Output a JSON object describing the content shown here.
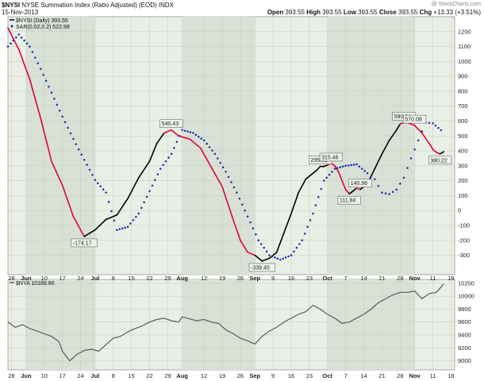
{
  "header": {
    "symbol": "$NYSI",
    "name": "NYSE Summation Index (Ratio Adjusted) (EOD)",
    "exchange": "INDX",
    "date": "15-Nov-2013",
    "open_label": "Open",
    "open": "393.55",
    "high_label": "High",
    "high": "393.55",
    "low_label": "Low",
    "low": "393.55",
    "close_label": "Close",
    "close": "393.55",
    "chg_label": "Chg",
    "chg": "+13.33 (+3.51%)",
    "watermark": "@ StockCharts.com"
  },
  "colors": {
    "panel_bg": "#e9efe6",
    "shade": "#d9e1d6",
    "grid": "#c4cec0",
    "nysi_line": "#000000",
    "nysi_down": "#e0003c",
    "sar": "#1a2aa8",
    "nya_line": "#5a5a5a"
  },
  "chart_data": [
    {
      "type": "line",
      "panel": "top",
      "legend": [
        {
          "label": "$NYSI (Daily) 393.55",
          "color": "#000000",
          "marker": "line"
        },
        {
          "label": "SAR(0.02,0.2) 522.98",
          "color": "#1a2aa8",
          "marker": "dot"
        }
      ],
      "ylim": [
        -430,
        1300
      ],
      "yticks": [
        -300,
        -200,
        -100,
        0,
        100,
        200,
        300,
        400,
        500,
        600,
        700,
        800,
        900,
        1000,
        1100,
        1200
      ],
      "xlim": [
        0,
        123
      ],
      "xticks": [
        {
          "x": 1,
          "label": "28"
        },
        {
          "x": 5,
          "label": "Jun"
        },
        {
          "x": 10,
          "label": "10"
        },
        {
          "x": 15,
          "label": "17"
        },
        {
          "x": 20,
          "label": "24"
        },
        {
          "x": 24,
          "label": "Jul"
        },
        {
          "x": 29,
          "label": "8"
        },
        {
          "x": 34,
          "label": "15"
        },
        {
          "x": 39,
          "label": "22"
        },
        {
          "x": 44,
          "label": "29"
        },
        {
          "x": 48,
          "label": "Aug"
        },
        {
          "x": 54,
          "label": "12"
        },
        {
          "x": 59,
          "label": "19"
        },
        {
          "x": 64,
          "label": "26"
        },
        {
          "x": 68,
          "label": "Sep"
        },
        {
          "x": 73,
          "label": "9"
        },
        {
          "x": 78,
          "label": "16"
        },
        {
          "x": 83,
          "label": "23"
        },
        {
          "x": 88,
          "label": "Oct"
        },
        {
          "x": 93,
          "label": "7"
        },
        {
          "x": 98,
          "label": "14"
        },
        {
          "x": 103,
          "label": "21"
        },
        {
          "x": 108,
          "label": "28"
        },
        {
          "x": 112,
          "label": "Nov"
        },
        {
          "x": 117,
          "label": "11"
        },
        {
          "x": 122,
          "label": "18"
        }
      ],
      "shaded_months": [
        [
          5,
          24
        ],
        [
          48,
          68
        ],
        [
          88,
          112
        ]
      ],
      "series": [
        {
          "name": "$NYSI (Daily)",
          "x": [
            0,
            3,
            6,
            9,
            12,
            15,
            18,
            21,
            24,
            27,
            30,
            33,
            36,
            39,
            41,
            43,
            45,
            47,
            50,
            53,
            56,
            59,
            62,
            64,
            66,
            68,
            70,
            72,
            74,
            76,
            78,
            80,
            82,
            84,
            85,
            86,
            87,
            88,
            89,
            90,
            91,
            92,
            93,
            94,
            95,
            96,
            97,
            99,
            101,
            103,
            105,
            107,
            108,
            109,
            110,
            111,
            112,
            114,
            116,
            117,
            118,
            119,
            120
          ],
          "values": [
            1225,
            1080,
            880,
            620,
            330,
            170,
            -40,
            -174,
            -130,
            -60,
            -30,
            80,
            220,
            330,
            450,
            520,
            540,
            500,
            480,
            420,
            290,
            160,
            -60,
            -200,
            -280,
            -300,
            -339,
            -320,
            -280,
            -150,
            -20,
            120,
            210,
            250,
            270,
            296,
            295,
            305,
            315,
            300,
            260,
            200,
            140,
            112,
            130,
            150,
            141,
            180,
            280,
            380,
            470,
            540,
            580,
            590,
            588,
            580,
            570,
            520,
            450,
            410,
            390,
            380,
            394
          ],
          "down_segments": [
            [
              0,
              21
            ],
            [
              43,
              68
            ],
            [
              88,
              94
            ],
            [
              96,
              97
            ],
            [
              108,
              119
            ]
          ]
        },
        {
          "name": "SAR(0.02,0.2)",
          "x": [
            0,
            3,
            6,
            9,
            12,
            15,
            18,
            21,
            24,
            27,
            30,
            33,
            36,
            39,
            42,
            45,
            48,
            51,
            54,
            57,
            60,
            63,
            66,
            69,
            72,
            75,
            78,
            81,
            84,
            87,
            90,
            93,
            96,
            99,
            101,
            103,
            105,
            107,
            109,
            111,
            113,
            115,
            117,
            120
          ],
          "values": [
            1100,
            1180,
            1100,
            950,
            790,
            630,
            480,
            340,
            205,
            120,
            -130,
            -110,
            -20,
            130,
            280,
            380,
            540,
            520,
            470,
            380,
            260,
            120,
            -40,
            -200,
            -300,
            -330,
            -300,
            -200,
            -20,
            200,
            280,
            300,
            310,
            250,
            210,
            120,
            110,
            140,
            220,
            350,
            470,
            590,
            585,
            523
          ]
        }
      ],
      "annotations": [
        {
          "x": 21,
          "y": -174.17,
          "label": "-174.17"
        },
        {
          "x": 45,
          "y": 540.43,
          "label": "540.43"
        },
        {
          "x": 70,
          "y": -339.4,
          "label": "-339.40"
        },
        {
          "x": 86,
          "y": 295.81,
          "label": "295.81"
        },
        {
          "x": 89,
          "y": 315.46,
          "label": "315.46"
        },
        {
          "x": 94,
          "y": 111.84,
          "label": "111.84"
        },
        {
          "x": 97,
          "y": 140.96,
          "label": "140.96"
        },
        {
          "x": 109,
          "y": 590.24,
          "label": "590.24"
        },
        {
          "x": 112,
          "y": 570.08,
          "label": "570.08"
        },
        {
          "x": 119,
          "y": 380.22,
          "label": "380.22"
        }
      ]
    },
    {
      "type": "line",
      "panel": "bottom",
      "legend": [
        {
          "label": "$NYA 10189.80",
          "color": "#5a5a5a",
          "marker": "line"
        }
      ],
      "ylim": [
        8860,
        10260
      ],
      "yticks": [
        9000,
        9200,
        9400,
        9600,
        9800,
        10000,
        10200
      ],
      "xlim": [
        0,
        123
      ],
      "series": [
        {
          "name": "$NYA",
          "x": [
            0,
            2,
            4,
            6,
            8,
            10,
            12,
            14,
            15,
            17,
            19,
            21,
            23,
            25,
            27,
            29,
            31,
            33,
            35,
            37,
            39,
            41,
            43,
            45,
            47,
            48,
            50,
            52,
            54,
            56,
            58,
            60,
            62,
            64,
            66,
            68,
            70,
            72,
            74,
            76,
            78,
            80,
            82,
            84,
            86,
            88,
            90,
            92,
            94,
            96,
            98,
            100,
            102,
            104,
            106,
            108,
            110,
            112,
            114,
            116,
            118,
            120
          ],
          "values": [
            9600,
            9520,
            9560,
            9500,
            9460,
            9420,
            9380,
            9300,
            9150,
            9000,
            9100,
            9160,
            9180,
            9150,
            9250,
            9350,
            9380,
            9450,
            9500,
            9540,
            9600,
            9640,
            9660,
            9620,
            9600,
            9680,
            9650,
            9620,
            9640,
            9600,
            9580,
            9480,
            9420,
            9350,
            9310,
            9260,
            9380,
            9460,
            9520,
            9600,
            9660,
            9720,
            9760,
            9860,
            9800,
            9720,
            9660,
            9580,
            9600,
            9660,
            9720,
            9800,
            9900,
            9960,
            10020,
            10060,
            10060,
            10080,
            9960,
            10040,
            10060,
            10190
          ]
        }
      ]
    }
  ]
}
